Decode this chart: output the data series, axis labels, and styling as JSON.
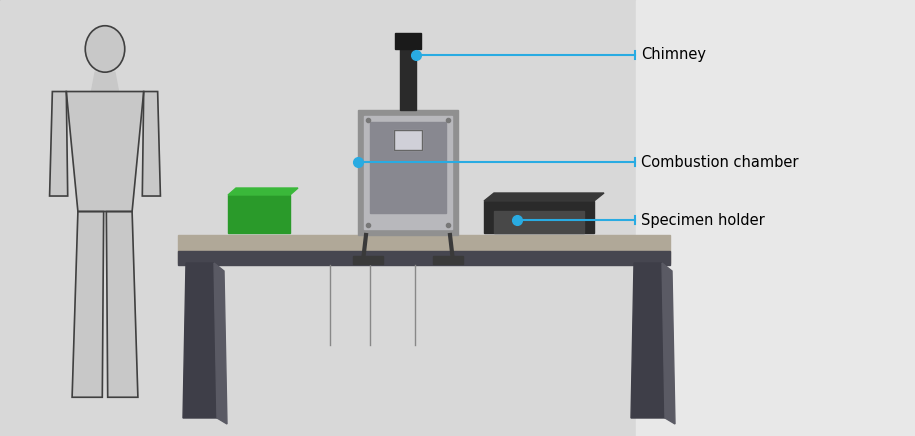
{
  "bg_left_color": "#d8d8d8",
  "bg_right_color": "#e8e8e8",
  "bg_split": 0.695,
  "table_top_color": "#b0a898",
  "table_edge_color": "#464650",
  "table_leg_color": "#3e3e48",
  "table_leg_side_color": "#5a5a64",
  "person_fill": "#c8c8c8",
  "person_outline": "#404040",
  "chimney_color": "#2a2a2a",
  "chimney_cap_color": "#1a1a1a",
  "chamber_outer_color": "#909090",
  "chamber_panel_color": "#b8b8bc",
  "chamber_inner_color": "#888890",
  "chamber_window_color": "#c0c4cc",
  "chamber_window_inner": "#d0d0d8",
  "stand_color": "#3a3a3a",
  "green_box_color": "#2a9a2a",
  "green_box_highlight": "#3ab83a",
  "specimen_outer_color": "#2a2a2a",
  "specimen_inner_color": "#484848",
  "arrow_color": "#29abe2",
  "dot_color": "#29abe2",
  "label_font_size": 10.5,
  "labels": [
    "Chimney",
    "Combustion chamber",
    "Specimen holder"
  ]
}
